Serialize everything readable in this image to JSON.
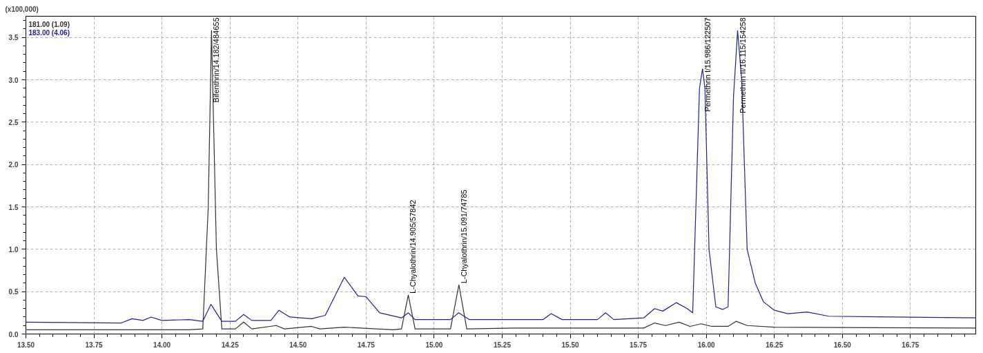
{
  "chart_data": {
    "type": "line",
    "ylabel": "(x100,000)",
    "xlim": [
      13.5,
      16.99
    ],
    "ylim": [
      0,
      3.75
    ],
    "xticks": [
      {
        "value": 13.5,
        "label": "13.50"
      },
      13.75,
      {
        "value": 14.0,
        "label": "14.00"
      },
      14.25,
      {
        "value": 14.5,
        "label": "14.50"
      },
      14.75,
      {
        "value": 15.0,
        "label": "15.00"
      },
      15.25,
      {
        "value": 15.5,
        "label": "15.50"
      },
      15.75,
      {
        "value": 16.0,
        "label": "16.00"
      },
      16.25,
      {
        "value": 16.5,
        "label": "16.50"
      },
      16.75
    ],
    "yticks": [
      {
        "value": 0,
        "label": "0.0"
      },
      0.5,
      {
        "value": 1,
        "label": "1.0"
      },
      1.5,
      {
        "value": 2,
        "label": "2.0"
      },
      2.5,
      {
        "value": 3,
        "label": "3.0"
      },
      3.5
    ],
    "grid": true,
    "legend": "top left",
    "marker": "none",
    "line_style": "solid",
    "series": [
      {
        "name": "181.00 (1.09)",
        "color": "#303030",
        "x": [
          13.5,
          14.1,
          14.15,
          14.17,
          14.182,
          14.2,
          14.22,
          14.27,
          14.3,
          14.33,
          14.42,
          14.45,
          14.55,
          14.58,
          14.67,
          14.85,
          14.88,
          14.905,
          14.93,
          15.06,
          15.091,
          15.12,
          15.3,
          15.77,
          15.81,
          15.85,
          15.9,
          15.94,
          15.98,
          16.02,
          16.08,
          16.11,
          16.15,
          16.25,
          16.99
        ],
        "values": [
          0.05,
          0.05,
          0.06,
          1.5,
          3.58,
          1.0,
          0.06,
          0.06,
          0.14,
          0.06,
          0.1,
          0.06,
          0.09,
          0.06,
          0.08,
          0.05,
          0.06,
          0.46,
          0.06,
          0.06,
          0.58,
          0.06,
          0.07,
          0.07,
          0.13,
          0.1,
          0.14,
          0.09,
          0.12,
          0.09,
          0.09,
          0.15,
          0.1,
          0.08,
          0.07
        ]
      },
      {
        "name": "183.00 (4.06)",
        "color": "#1f1f8f",
        "x": [
          13.5,
          13.85,
          13.89,
          13.93,
          13.96,
          14.0,
          14.1,
          14.15,
          14.18,
          14.22,
          14.27,
          14.3,
          14.33,
          14.4,
          14.43,
          14.47,
          14.55,
          14.6,
          14.67,
          14.72,
          14.75,
          14.8,
          14.88,
          14.905,
          14.93,
          15.06,
          15.09,
          15.13,
          15.4,
          15.43,
          15.47,
          15.6,
          15.63,
          15.66,
          15.77,
          15.81,
          15.84,
          15.89,
          15.93,
          15.95,
          15.975,
          15.986,
          15.995,
          16.01,
          16.035,
          16.06,
          16.08,
          16.1,
          16.115,
          16.13,
          16.15,
          16.18,
          16.21,
          16.25,
          16.3,
          16.37,
          16.45,
          16.99
        ],
        "values": [
          0.14,
          0.13,
          0.18,
          0.16,
          0.2,
          0.16,
          0.17,
          0.15,
          0.35,
          0.15,
          0.15,
          0.23,
          0.16,
          0.16,
          0.28,
          0.2,
          0.18,
          0.22,
          0.67,
          0.45,
          0.44,
          0.25,
          0.19,
          0.25,
          0.17,
          0.17,
          0.25,
          0.17,
          0.17,
          0.24,
          0.17,
          0.17,
          0.25,
          0.17,
          0.19,
          0.3,
          0.27,
          0.37,
          0.3,
          0.25,
          2.9,
          3.13,
          2.9,
          1.0,
          0.32,
          0.29,
          0.32,
          2.8,
          3.58,
          3.0,
          1.0,
          0.6,
          0.38,
          0.28,
          0.24,
          0.26,
          0.21,
          0.19
        ]
      }
    ],
    "annotations": [
      {
        "text": "Bifenthrin/14.182/484655",
        "x": 14.182,
        "y": 3.58
      },
      {
        "text": "L-Chyalothrin/14.905/57842",
        "x": 14.905,
        "y": 0.46
      },
      {
        "text": "L-Chyalothrin/15.091/74785",
        "x": 15.091,
        "y": 0.58
      },
      {
        "text": "Permethrin I/15.986/122507",
        "x": 15.986,
        "y": 3.13
      },
      {
        "text": "Permethrin II/16.115/154258",
        "x": 16.115,
        "y": 3.58
      }
    ]
  }
}
